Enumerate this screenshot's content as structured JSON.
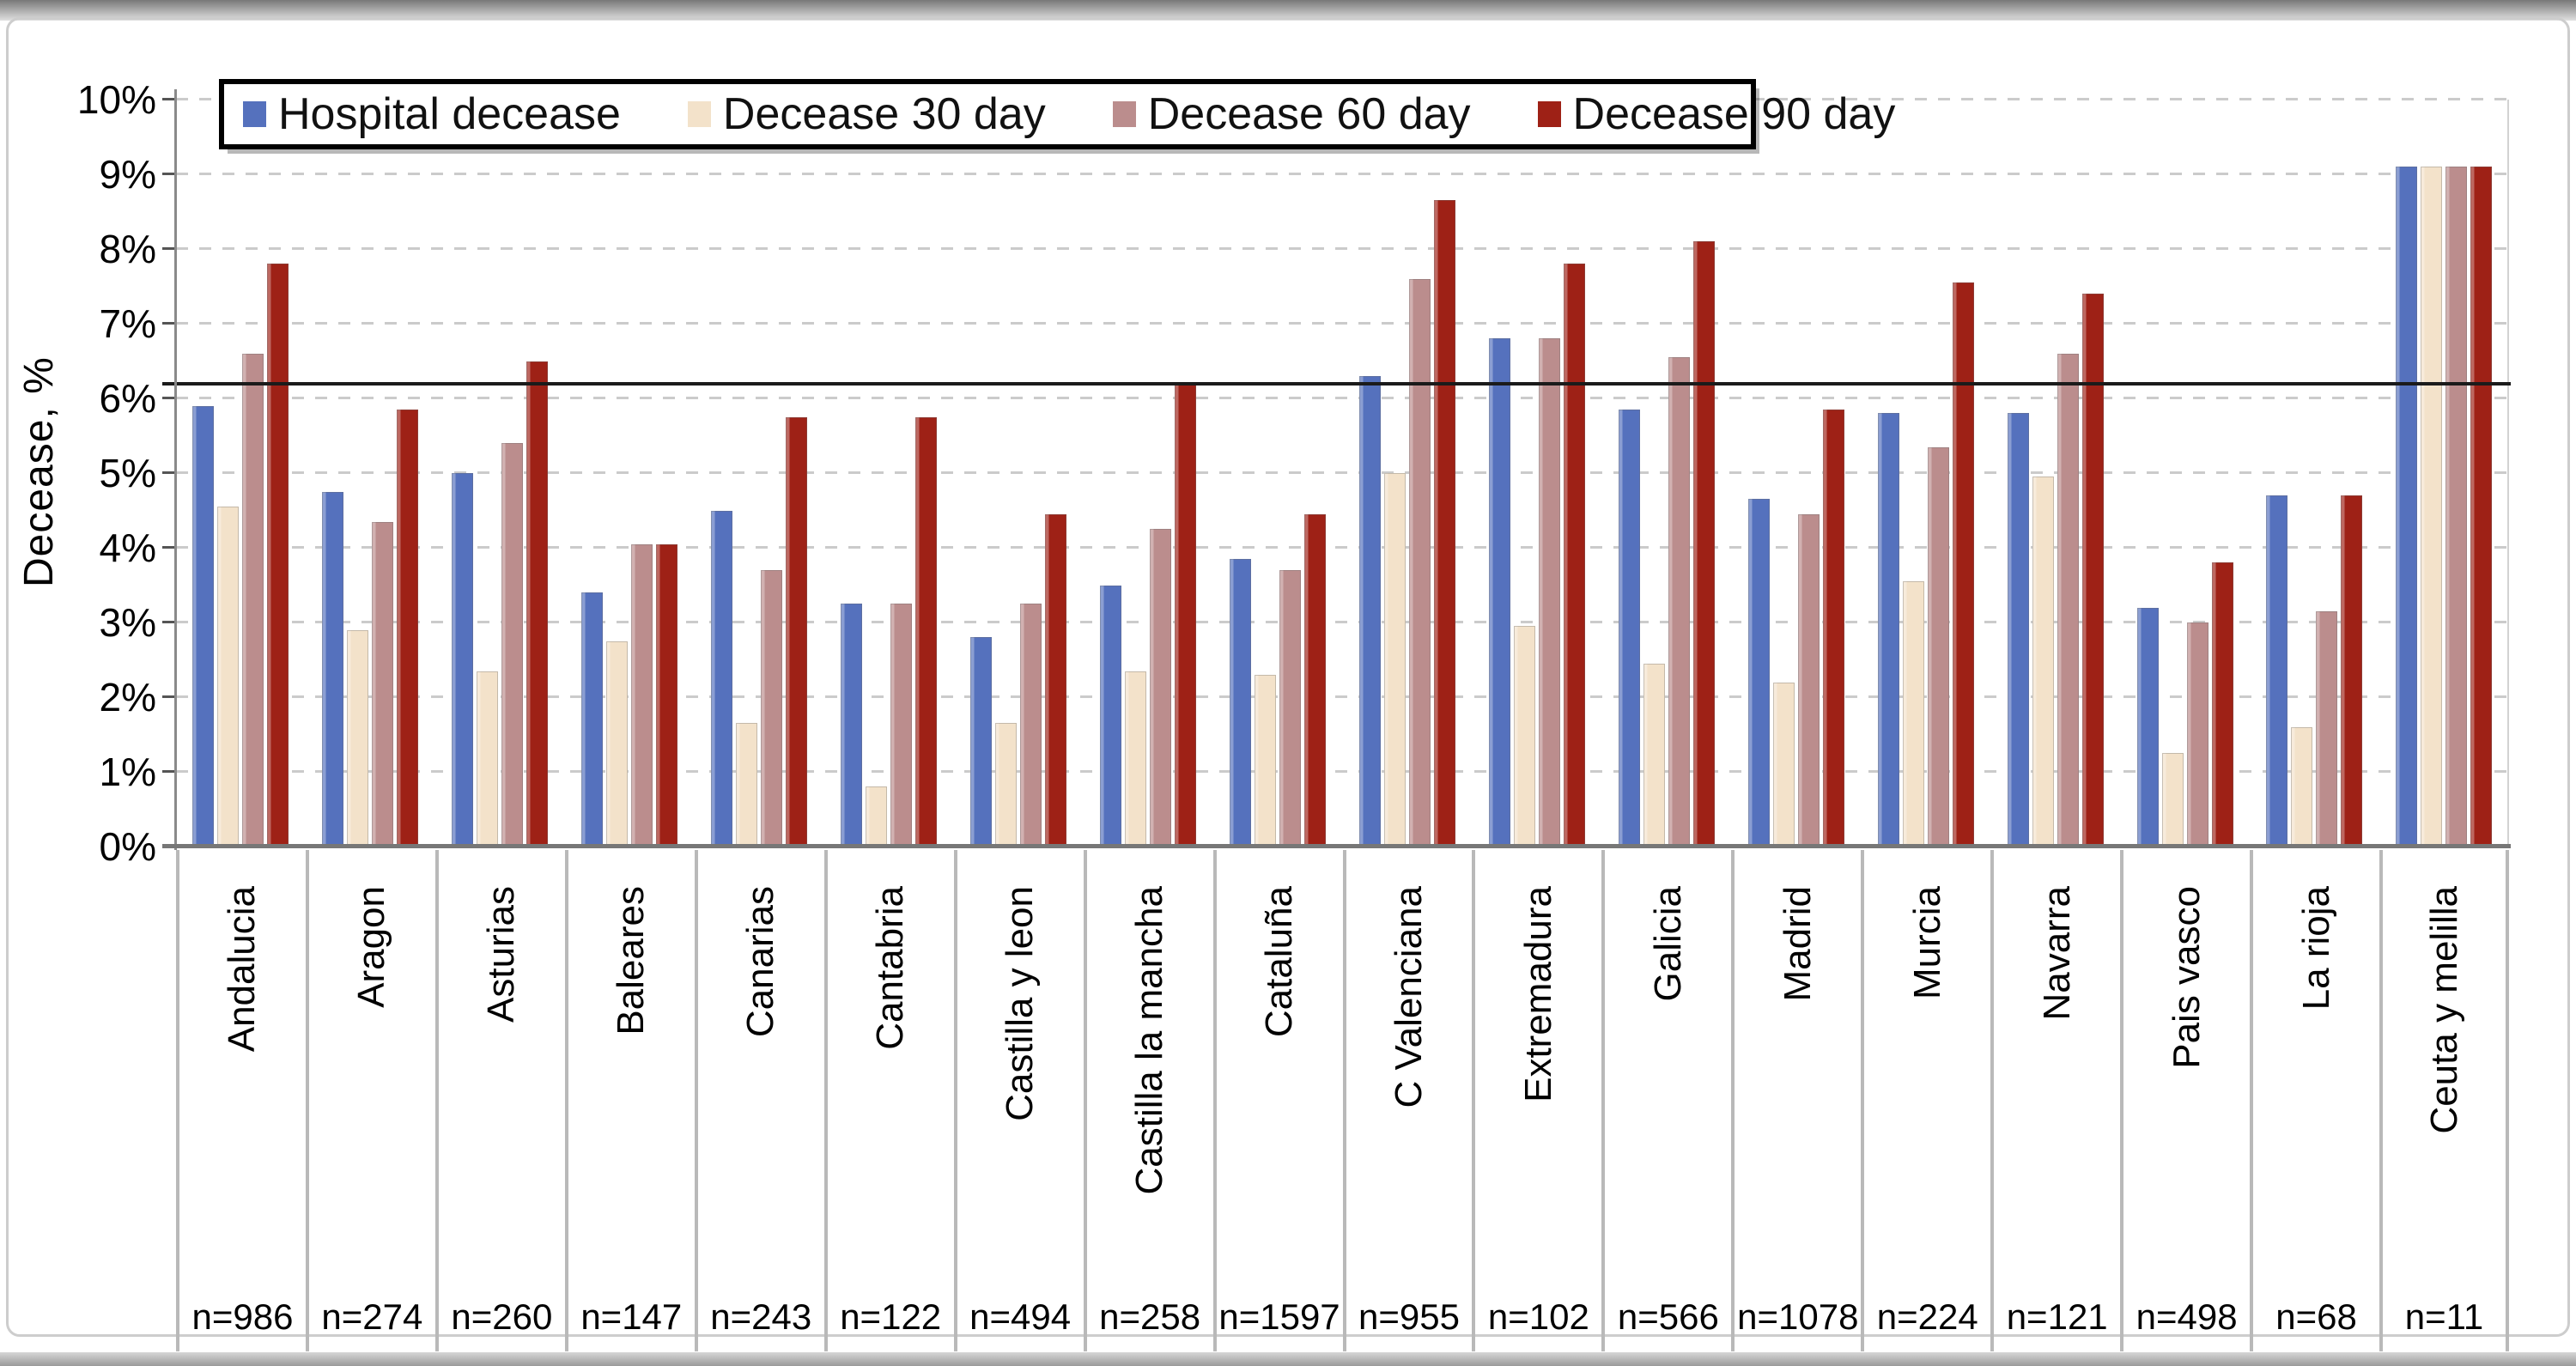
{
  "figure": {
    "y_axis_title": "Decease, %",
    "y_tick_labels": [
      "10%",
      "9%",
      "8%",
      "7%",
      "6%",
      "5%",
      "4%",
      "3%",
      "2%",
      "1%",
      "0%"
    ]
  },
  "chart_data": {
    "type": "bar",
    "title": "",
    "xlabel": "",
    "ylabel": "Decease, %",
    "ylim": [
      0,
      10
    ],
    "y_tick_step": 1,
    "grid": "horizontal-dashed",
    "legend_position": "top-left-inside",
    "reference_line": 6.2,
    "categories": [
      "Andalucia",
      "Aragon",
      "Asturias",
      "Baleares",
      "Canarias",
      "Cantabria",
      "Castilla y leon",
      "Castilla la mancha",
      "Cataluña",
      "C Valenciana",
      "Extremadura",
      "Galicia",
      "Madrid",
      "Murcia",
      "Navarra",
      "Pais vasco",
      "La rioja",
      "Ceuta y melilla"
    ],
    "n_labels": [
      "n=986",
      "n=274",
      "n=260",
      "n=147",
      "n=243",
      "n=122",
      "n=494",
      "n=258",
      "n=1597",
      "n=955",
      "n=102",
      "n=566",
      "n=1078",
      "n=224",
      "n=121",
      "n=498",
      "n=68",
      "n=11"
    ],
    "series": [
      {
        "name": "Hospital decease",
        "color": "#5571bd",
        "values": [
          5.9,
          4.75,
          5.0,
          3.4,
          4.5,
          3.25,
          2.8,
          3.5,
          3.85,
          6.3,
          6.8,
          5.85,
          4.65,
          5.8,
          5.8,
          3.2,
          4.7,
          9.1
        ]
      },
      {
        "name": "Decease 30 day",
        "color": "#f3e2ca",
        "values": [
          4.55,
          2.9,
          2.35,
          2.75,
          1.65,
          0.8,
          1.65,
          2.35,
          2.3,
          5.0,
          2.95,
          2.45,
          2.2,
          3.55,
          4.95,
          1.25,
          1.6,
          9.1
        ]
      },
      {
        "name": "Decease 60 day",
        "color": "#bb8d8d",
        "values": [
          6.6,
          4.35,
          5.4,
          4.05,
          3.7,
          3.25,
          3.25,
          4.25,
          3.7,
          7.6,
          6.8,
          6.55,
          4.45,
          5.35,
          6.6,
          3.0,
          3.15,
          9.1
        ]
      },
      {
        "name": "Decease 90 day",
        "color": "#9e2116",
        "values": [
          7.8,
          5.85,
          6.5,
          4.05,
          5.75,
          5.75,
          4.45,
          6.2,
          4.45,
          8.65,
          7.8,
          8.1,
          5.85,
          7.55,
          7.4,
          3.8,
          4.7,
          9.1
        ]
      }
    ]
  }
}
